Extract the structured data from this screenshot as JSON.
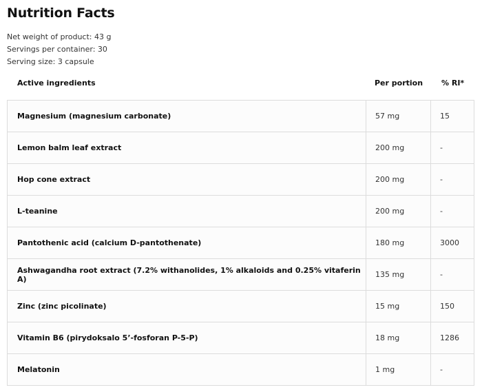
{
  "title": "Nutrition Facts",
  "meta": {
    "net_weight": "Net weight of product: 43 g",
    "servings": "Servings per container: 30",
    "serving_size": "Serving size: 3 capsule"
  },
  "table": {
    "headers": [
      "Active ingredients",
      "Per portion",
      "% RI*"
    ],
    "rows": [
      [
        "Magnesium (magnesium carbonate)",
        "57 mg",
        "15"
      ],
      [
        "Lemon balm leaf extract",
        "200 mg",
        "-"
      ],
      [
        "Hop cone extract",
        "200 mg",
        "-"
      ],
      [
        "L-teanine",
        "200 mg",
        "-"
      ],
      [
        "Pantothenic acid (calcium D-pantothenate)",
        "180 mg",
        "3000"
      ],
      [
        "Ashwagandha root extract (7.2% withanolides, 1% alkaloids and 0.25% vitaferin A)",
        "135 mg",
        "-"
      ],
      [
        "Zinc (zinc picolinate)",
        "15 mg",
        "150"
      ],
      [
        "Vitamin B6 (pirydoksalo 5’-fosforan P-5-P)",
        "18 mg",
        "1286"
      ],
      [
        "Melatonin",
        "1 mg",
        "-"
      ]
    ]
  }
}
